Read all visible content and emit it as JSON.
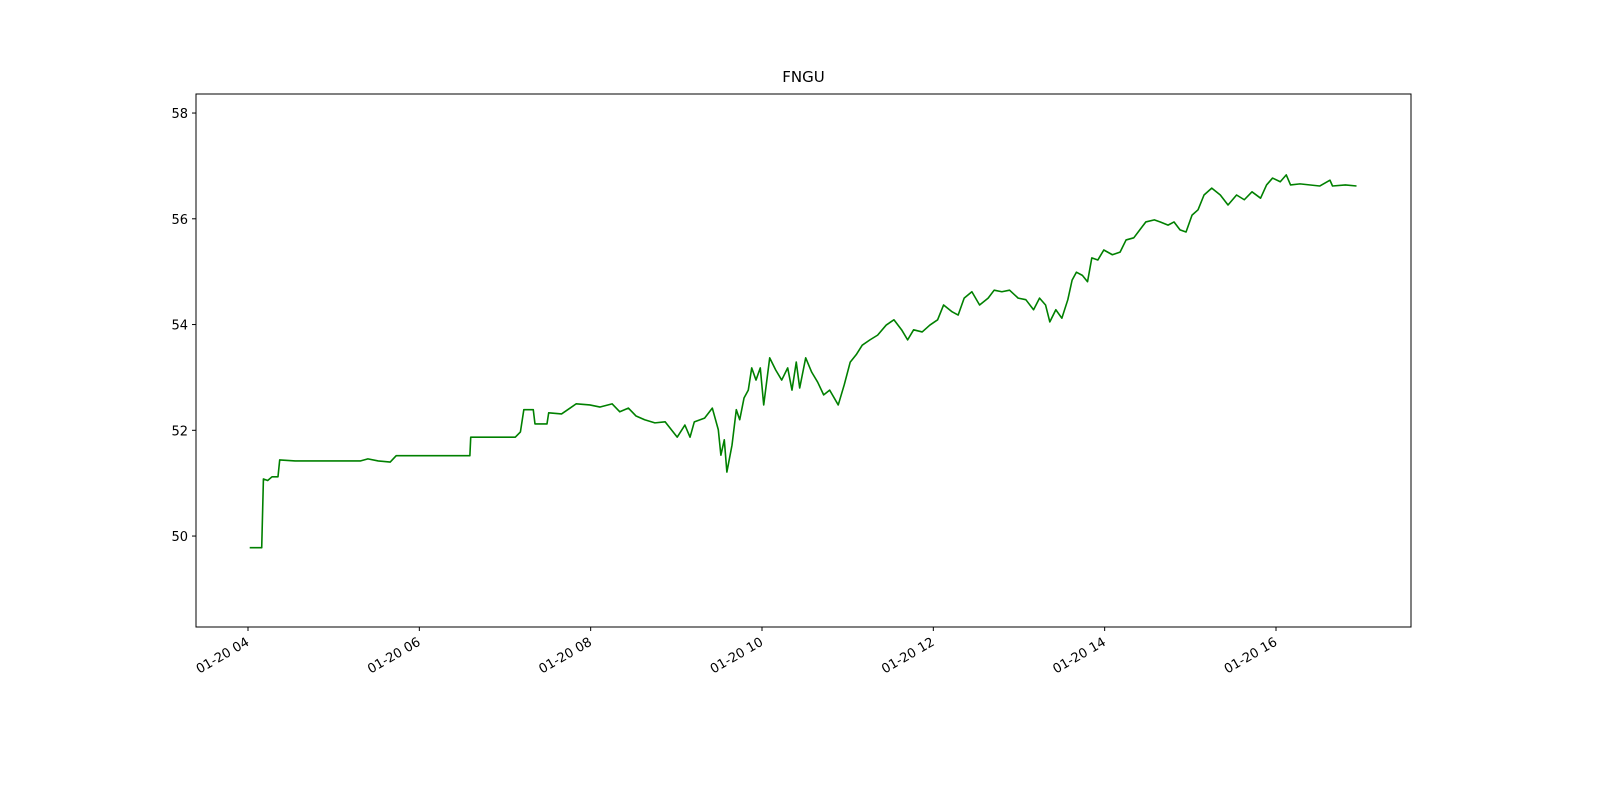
{
  "chart_data": {
    "type": "line",
    "title": "FNGU",
    "x": [
      4.02,
      4.16,
      4.18,
      4.23,
      4.28,
      4.35,
      4.37,
      4.55,
      5.31,
      5.4,
      5.52,
      5.66,
      5.73,
      6.59,
      6.6,
      7.12,
      7.18,
      7.22,
      7.33,
      7.35,
      7.49,
      7.51,
      7.66,
      7.76,
      7.83,
      7.99,
      8.11,
      8.25,
      8.34,
      8.44,
      8.53,
      8.63,
      8.75,
      8.87,
      9.01,
      9.1,
      9.16,
      9.21,
      9.33,
      9.42,
      9.49,
      9.52,
      9.56,
      9.59,
      9.65,
      9.7,
      9.74,
      9.79,
      9.84,
      9.88,
      9.93,
      9.98,
      10.02,
      10.09,
      10.16,
      10.23,
      10.3,
      10.35,
      10.4,
      10.44,
      10.51,
      10.58,
      10.65,
      10.72,
      10.79,
      10.89,
      10.96,
      11.03,
      11.1,
      11.17,
      11.26,
      11.35,
      11.45,
      11.54,
      11.63,
      11.7,
      11.77,
      11.87,
      11.96,
      12.05,
      12.12,
      12.22,
      12.29,
      12.36,
      12.45,
      12.54,
      12.64,
      12.71,
      12.8,
      12.89,
      12.99,
      13.08,
      13.17,
      13.24,
      13.31,
      13.36,
      13.43,
      13.5,
      13.57,
      13.62,
      13.67,
      13.74,
      13.8,
      13.85,
      13.92,
      13.99,
      14.09,
      14.18,
      14.25,
      14.34,
      14.41,
      14.48,
      14.58,
      14.65,
      14.74,
      14.81,
      14.88,
      14.95,
      15.02,
      15.09,
      15.16,
      15.25,
      15.35,
      15.44,
      15.54,
      15.63,
      15.72,
      15.82,
      15.89,
      15.96,
      16.05,
      16.12,
      16.17,
      16.28,
      16.51,
      16.63,
      16.66,
      16.81,
      16.94
    ],
    "series": [
      {
        "color": "#008000",
        "values": [
          49.78,
          49.78,
          51.08,
          51.05,
          51.12,
          51.12,
          51.44,
          51.42,
          51.42,
          51.46,
          51.42,
          51.4,
          51.52,
          51.52,
          51.87,
          51.87,
          51.97,
          52.39,
          52.39,
          52.12,
          52.12,
          52.33,
          52.31,
          52.42,
          52.5,
          52.48,
          52.44,
          52.5,
          52.35,
          52.42,
          52.27,
          52.2,
          52.14,
          52.16,
          51.87,
          52.1,
          51.87,
          52.16,
          52.23,
          52.42,
          52.01,
          51.53,
          51.82,
          51.21,
          51.72,
          52.39,
          52.2,
          52.61,
          52.76,
          53.18,
          52.95,
          53.18,
          52.48,
          53.37,
          53.14,
          52.95,
          53.18,
          52.76,
          53.29,
          52.8,
          53.37,
          53.1,
          52.91,
          52.67,
          52.76,
          52.48,
          52.86,
          53.29,
          53.43,
          53.61,
          53.71,
          53.8,
          53.99,
          54.09,
          53.9,
          53.71,
          53.9,
          53.86,
          53.99,
          54.09,
          54.37,
          54.24,
          54.18,
          54.5,
          54.62,
          54.37,
          54.5,
          54.65,
          54.62,
          54.65,
          54.5,
          54.47,
          54.28,
          54.5,
          54.37,
          54.05,
          54.28,
          54.12,
          54.47,
          54.84,
          54.99,
          54.93,
          54.81,
          55.26,
          55.22,
          55.41,
          55.32,
          55.37,
          55.6,
          55.64,
          55.79,
          55.94,
          55.98,
          55.94,
          55.88,
          55.94,
          55.79,
          55.75,
          56.07,
          56.17,
          56.45,
          56.58,
          56.45,
          56.26,
          56.45,
          56.36,
          56.51,
          56.39,
          56.64,
          56.77,
          56.7,
          56.83,
          56.64,
          56.66,
          56.62,
          56.73,
          56.62,
          56.64,
          56.62
        ]
      }
    ],
    "xlim": [
      3.393,
      17.576
    ],
    "xticks": [
      {
        "value": 4,
        "label": "01-20 04"
      },
      {
        "value": 6,
        "label": "01-20 06"
      },
      {
        "value": 8,
        "label": "01-20 08"
      },
      {
        "value": 10,
        "label": "01-20 10"
      },
      {
        "value": 12,
        "label": "01-20 12"
      },
      {
        "value": 14,
        "label": "01-20 14"
      },
      {
        "value": 16,
        "label": "01-20 16"
      }
    ],
    "ylim": [
      48.28,
      58.36
    ],
    "yticks": [
      50,
      52,
      54,
      56,
      58
    ]
  }
}
